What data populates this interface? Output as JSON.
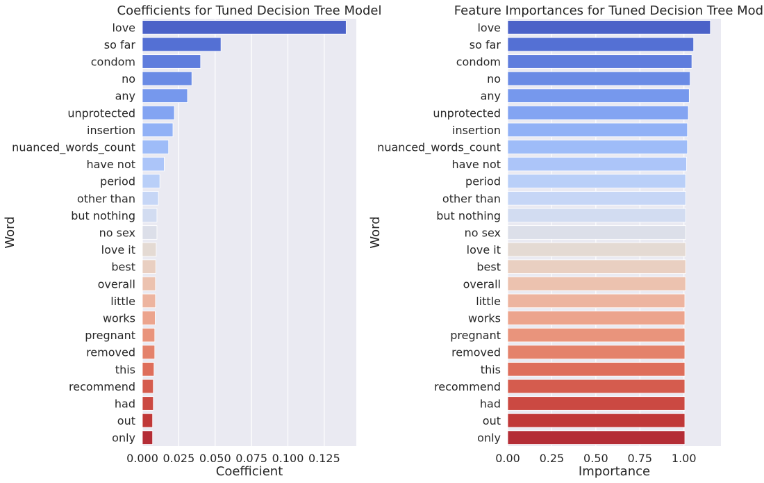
{
  "chart_data": [
    {
      "type": "bar",
      "orientation": "horizontal",
      "title": "Coefficients for Tuned Decision Tree Model",
      "xlabel": "Coefficient",
      "ylabel": "Word",
      "categories": [
        "love",
        "so far",
        "condom",
        "no",
        "any",
        "unprotected",
        "insertion",
        "nuanced_words_count",
        "have not",
        "period",
        "other than",
        "but nothing",
        "no sex",
        "love it",
        "best",
        "overall",
        "little",
        "works",
        "pregnant",
        "removed",
        "this",
        "recommend",
        "had",
        "out",
        "only"
      ],
      "values": [
        0.14,
        0.054,
        0.04,
        0.034,
        0.031,
        0.022,
        0.021,
        0.018,
        0.015,
        0.012,
        0.011,
        0.01,
        0.01,
        0.0095,
        0.0092,
        0.009,
        0.009,
        0.0088,
        0.0085,
        0.0085,
        0.008,
        0.0075,
        0.0075,
        0.007,
        0.007
      ],
      "xlim": [
        0,
        0.147
      ],
      "xticks": [
        0.0,
        0.025,
        0.05,
        0.075,
        0.1,
        0.125
      ],
      "xtick_labels": [
        "0.000",
        "0.025",
        "0.050",
        "0.075",
        "0.100",
        "0.125"
      ],
      "grid": "vertical",
      "palette": "coolwarm"
    },
    {
      "type": "bar",
      "orientation": "horizontal",
      "title": "Feature Importances for Tuned Decision Tree Model",
      "xlabel": "Importance",
      "ylabel": "Word",
      "categories": [
        "love",
        "so far",
        "condom",
        "no",
        "any",
        "unprotected",
        "insertion",
        "nuanced_words_count",
        "have not",
        "period",
        "other than",
        "but nothing",
        "no sex",
        "love it",
        "best",
        "overall",
        "little",
        "works",
        "pregnant",
        "removed",
        "this",
        "recommend",
        "had",
        "out",
        "only"
      ],
      "values": [
        1.15,
        1.055,
        1.045,
        1.035,
        1.03,
        1.025,
        1.02,
        1.02,
        1.015,
        1.01,
        1.01,
        1.01,
        1.01,
        1.01,
        1.01,
        1.01,
        1.005,
        1.005,
        1.005,
        1.005,
        1.005,
        1.005,
        1.005,
        1.005,
        1.005
      ],
      "xlim": [
        0,
        1.21
      ],
      "xticks": [
        0.0,
        0.25,
        0.5,
        0.75,
        1.0
      ],
      "xtick_labels": [
        "0.00",
        "0.25",
        "0.50",
        "0.75",
        "1.00"
      ],
      "grid": "vertical",
      "palette": "coolwarm"
    }
  ],
  "colors": {
    "axes_background": "#eaeaf2",
    "gridline": "#ffffff",
    "text": "#262626",
    "palette": [
      "#4b62c8",
      "#5470d4",
      "#5f7ddd",
      "#6a8be5",
      "#7698ed",
      "#83a4f2",
      "#91b1f6",
      "#9ebcf8",
      "#acc5f9",
      "#b9cff8",
      "#c6d6f6",
      "#d2dcf1",
      "#dcdfe9",
      "#e4dad3",
      "#e9cfc1",
      "#ecc2af",
      "#edb49f",
      "#eca48d",
      "#e9947c",
      "#e4826b",
      "#de6e5b",
      "#d55c4e",
      "#cb4942",
      "#c03838",
      "#b42d36"
    ]
  }
}
